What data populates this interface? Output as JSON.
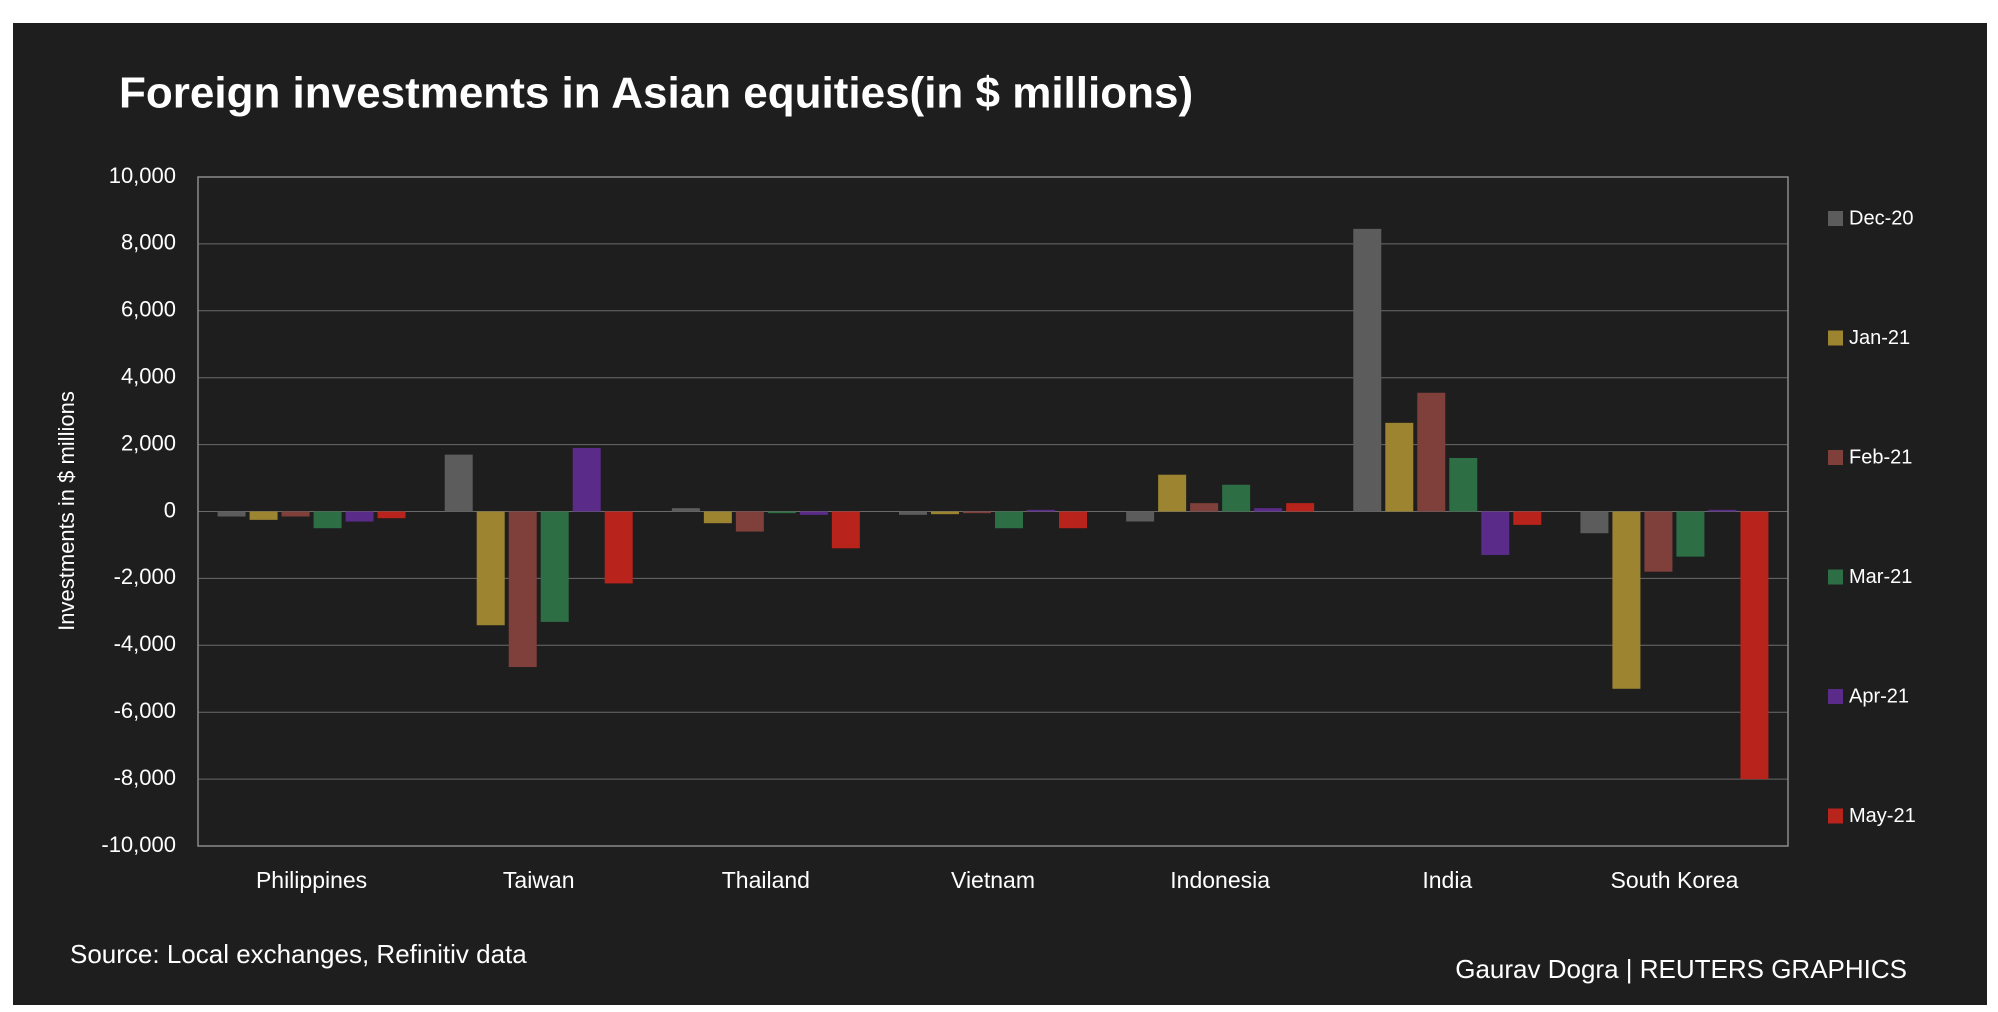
{
  "chart_data": {
    "type": "bar",
    "title": "Foreign investments in Asian equities(in $ millions)",
    "y_label": "Investments in $ millions",
    "source": "Source: Local exchanges, Refinitiv data",
    "credit": "Gaurav Dogra | REUTERS GRAPHICS",
    "categories": [
      "Philippines",
      "Taiwan",
      "Thailand",
      "Vietnam",
      "Indonesia",
      "India",
      "South Korea"
    ],
    "series": [
      {
        "name": "Dec-20",
        "color": "#5c5c5c",
        "values": [
          -150,
          1700,
          100,
          -100,
          -300,
          8450,
          -650
        ]
      },
      {
        "name": "Jan-21",
        "color": "#9c8430",
        "values": [
          -250,
          -3400,
          -350,
          -80,
          1100,
          2650,
          -5300
        ]
      },
      {
        "name": "Feb-21",
        "color": "#7f3f3a",
        "values": [
          -150,
          -4650,
          -600,
          -50,
          250,
          3550,
          -1800
        ]
      },
      {
        "name": "Mar-21",
        "color": "#2e6e45",
        "values": [
          -500,
          -3300,
          -50,
          -500,
          800,
          1600,
          -1350
        ]
      },
      {
        "name": "Apr-21",
        "color": "#5b2b8a",
        "values": [
          -300,
          1900,
          -100,
          50,
          100,
          -1300,
          50
        ]
      },
      {
        "name": "May-21",
        "color": "#b8231c",
        "values": [
          -200,
          -2150,
          -1100,
          -500,
          250,
          -400,
          -8000
        ]
      }
    ],
    "ylim": [
      -10000,
      10000
    ],
    "yticks": [
      {
        "value": -10000,
        "label": "-10,000"
      },
      {
        "value": -8000,
        "label": "-8,000"
      },
      {
        "value": -6000,
        "label": "-6,000"
      },
      {
        "value": -4000,
        "label": "-4,000"
      },
      {
        "value": -2000,
        "label": "-2,000"
      },
      0,
      {
        "value": 2000,
        "label": "2,000"
      },
      {
        "value": 4000,
        "label": "4,000"
      },
      {
        "value": 6000,
        "label": "6,000"
      },
      {
        "value": 8000,
        "label": "8,000"
      },
      {
        "value": 10000,
        "label": "10,000"
      }
    ],
    "grid": true,
    "legend": "right"
  }
}
